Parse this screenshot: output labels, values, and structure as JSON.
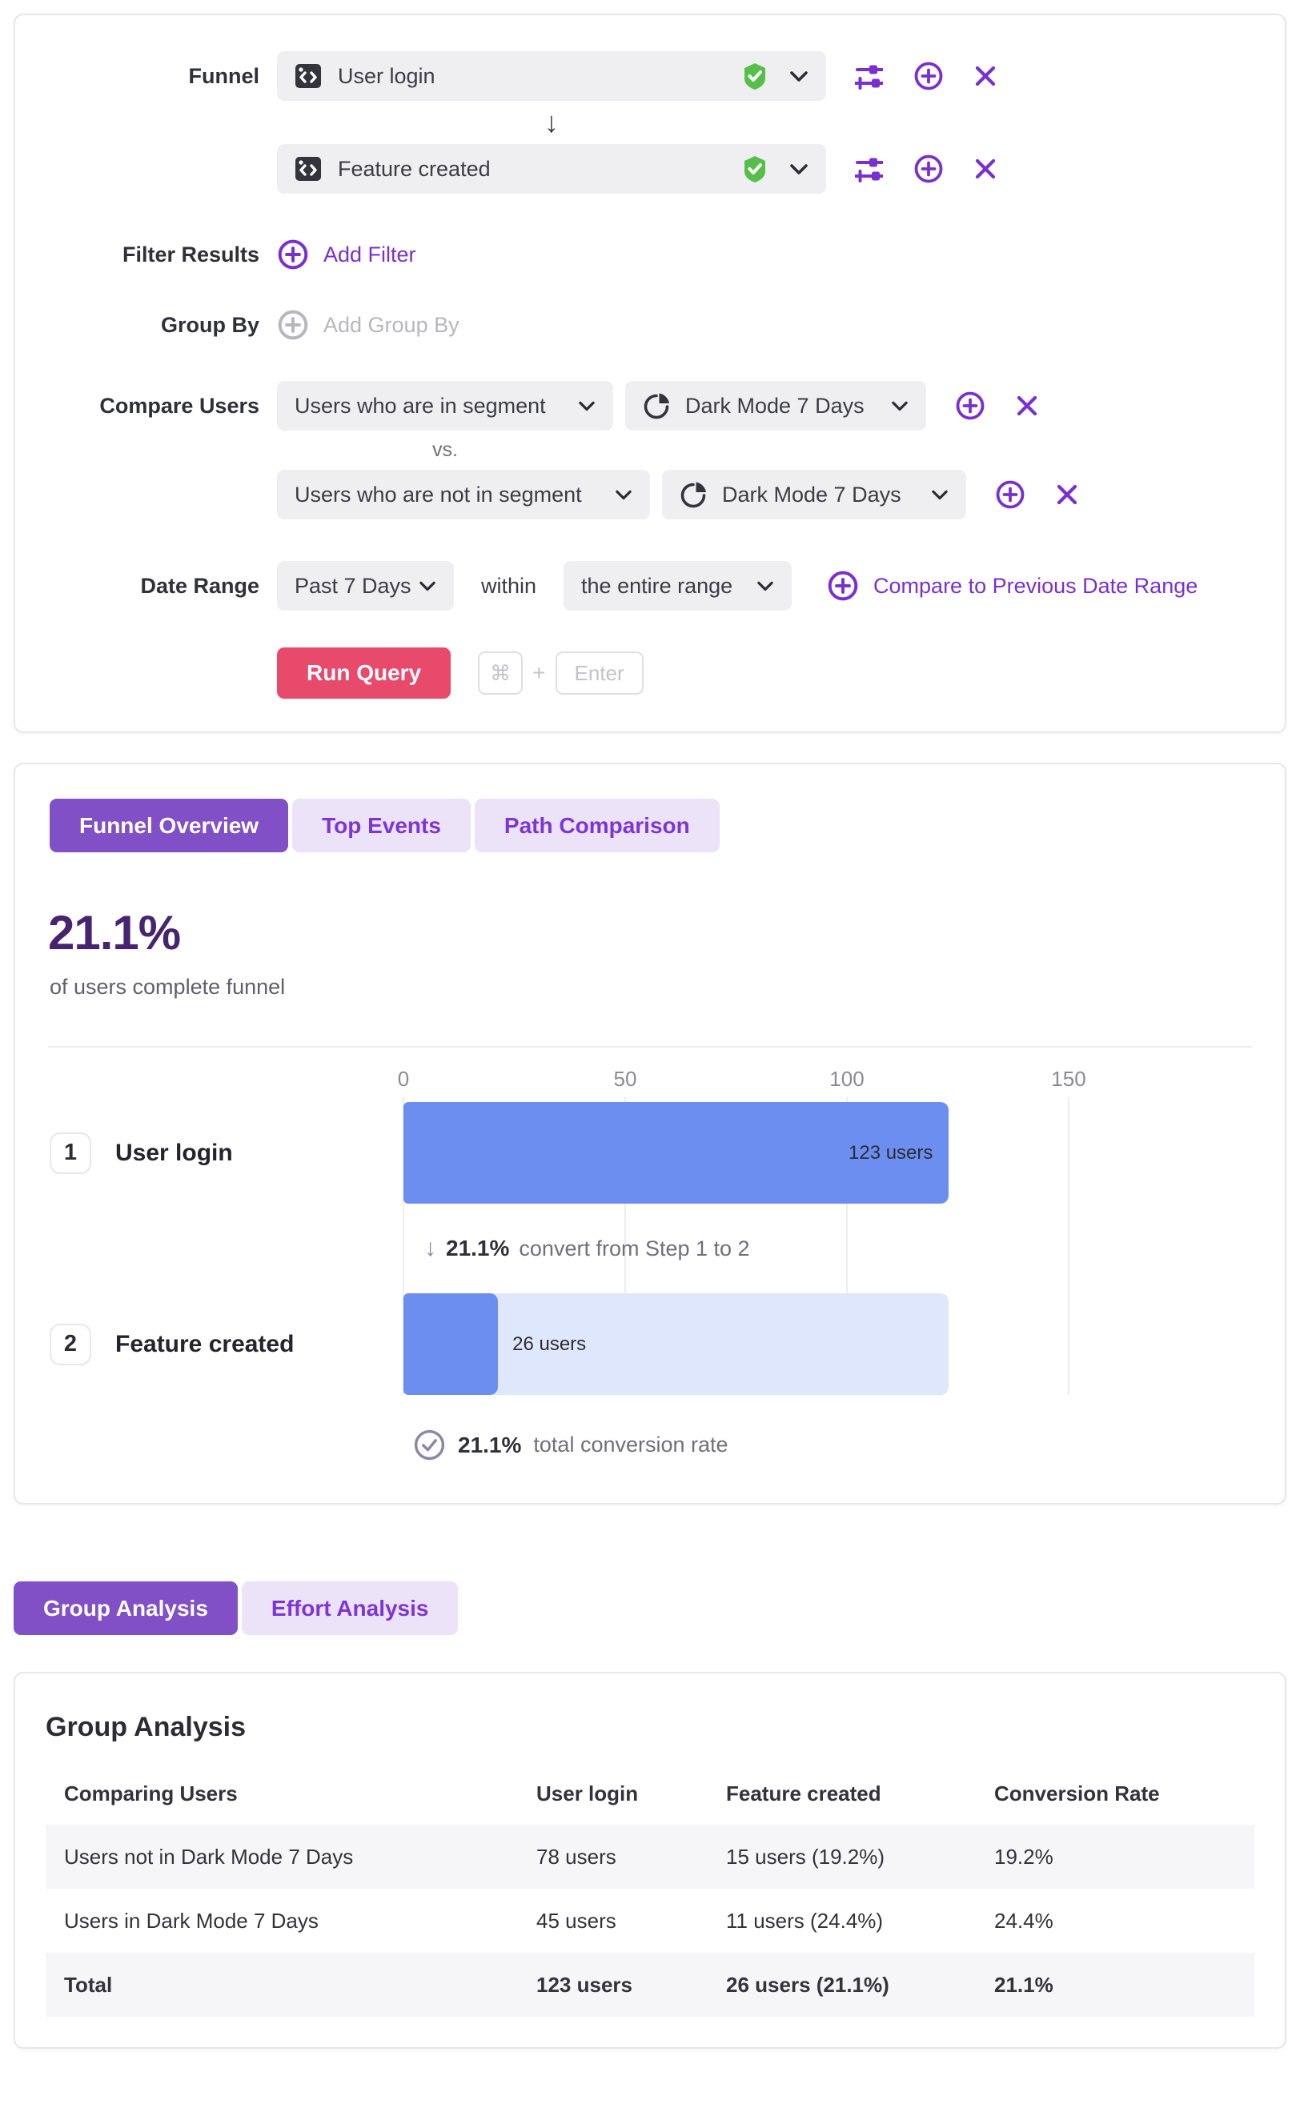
{
  "colors": {
    "accent_purple": "#7a2fd0",
    "tab_active_bg": "#8150c7",
    "tab_inactive_bg": "#ece3f8",
    "headline_purple": "#46246f",
    "bar_blue": "#6d8ef1",
    "bar_track_blue": "#dfe7fc",
    "run_query_red": "#e84a6b",
    "verified_green": "#55bf4a",
    "pill_gray": "#efeff2"
  },
  "icons": {
    "step_arrow": "↓",
    "convert_arrow": "↓",
    "kbd_mod": "⌘"
  },
  "query_builder": {
    "funnel_label": "Funnel",
    "steps": [
      {
        "name": "User login"
      },
      {
        "name": "Feature created"
      }
    ],
    "filter_results_label": "Filter Results",
    "add_filter_label": "Add Filter",
    "group_by_label": "Group By",
    "add_group_by_label": "Add Group By",
    "compare_users_label": "Compare Users",
    "comparisons": [
      {
        "selector": "Users who are in segment",
        "segment": "Dark Mode 7 Days"
      },
      {
        "selector": "Users who are not in segment",
        "segment": "Dark Mode 7 Days"
      }
    ],
    "vs_label": "vs.",
    "date_range_label": "Date Range",
    "date_range_value": "Past 7 Days",
    "within_label": "within",
    "range_scope_value": "the entire range",
    "compare_previous_label": "Compare to Previous Date Range",
    "run_query_label": "Run Query",
    "kbd_plus": "+",
    "kbd_enter": "Enter"
  },
  "results": {
    "tabs": [
      {
        "label": "Funnel Overview",
        "active": true
      },
      {
        "label": "Top Events",
        "active": false
      },
      {
        "label": "Path Comparison",
        "active": false
      }
    ],
    "headline": "21.1%",
    "headline_sub": "of users complete funnel"
  },
  "chart_data": {
    "type": "bar",
    "orientation": "horizontal",
    "title": "Funnel Overview",
    "categories": [
      "User login",
      "Feature created"
    ],
    "step_numbers": [
      "1",
      "2"
    ],
    "values": [
      123,
      26
    ],
    "value_labels": [
      "123 users",
      "26 users"
    ],
    "x_ticks": [
      0,
      50,
      100,
      150
    ],
    "xlim": [
      0,
      150
    ],
    "grid": true,
    "step_conversion_pct": "21.1%",
    "step_conversion_text": "convert from Step 1 to 2",
    "total_conversion_pct": "21.1%",
    "total_conversion_text": "total conversion rate"
  },
  "analysis_tabs": {
    "tabs": [
      {
        "label": "Group Analysis",
        "active": true
      },
      {
        "label": "Effort Analysis",
        "active": false
      }
    ]
  },
  "group_analysis": {
    "title": "Group Analysis",
    "columns": [
      "Comparing Users",
      "User login",
      "Feature created",
      "Conversion Rate"
    ],
    "rows": [
      [
        "Users not in Dark Mode 7 Days",
        "78 users",
        "15 users (19.2%)",
        "19.2%"
      ],
      [
        "Users in Dark Mode 7 Days",
        "45 users",
        "11 users (24.4%)",
        "24.4%"
      ],
      [
        "Total",
        "123 users",
        "26 users (21.1%)",
        "21.1%"
      ]
    ]
  }
}
